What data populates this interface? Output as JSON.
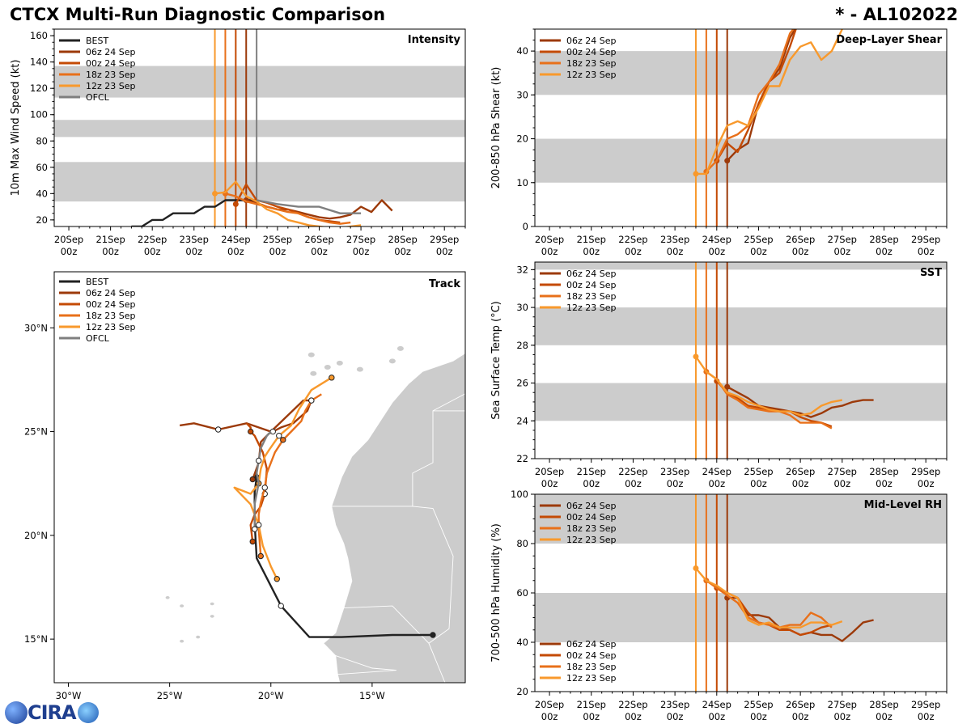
{
  "title_left": "CTCX Multi-Run Diagnostic Comparison",
  "title_right": "* - AL102022",
  "logo_text": "CIRA",
  "colors": {
    "BEST": "#222222",
    "06z 24 Sep": "#9c3a0a",
    "00z 24 Sep": "#c44a04",
    "18z 23 Sep": "#e8701a",
    "12z 23 Sep": "#f8992c",
    "OFCL": "#7f7f7f",
    "band": "#cccccc",
    "land": "#cccccc"
  },
  "time_ticks": [
    "20Sep\n00z",
    "21Sep\n00z",
    "22Sep\n00z",
    "23Sep\n00z",
    "24Sep\n00z",
    "25Sep\n00z",
    "26Sep\n00z",
    "27Sep\n00z",
    "28Sep\n00z",
    "29Sep\n00z"
  ],
  "chart_data": [
    {
      "type": "line",
      "name": "intensity",
      "panel_label": "Intensity",
      "ylabel": "10m Max Wind Speed (kt)",
      "ylim": [
        15,
        165
      ],
      "yticks": [
        20,
        40,
        60,
        80,
        100,
        120,
        140,
        160
      ],
      "xlim": [
        -0.35,
        9.5
      ],
      "bands": [
        [
          34,
          64
        ],
        [
          83,
          96
        ],
        [
          113,
          137
        ]
      ],
      "init_lines": [
        {
          "x": 3.5,
          "run": "12z 23 Sep"
        },
        {
          "x": 3.75,
          "run": "18z 23 Sep"
        },
        {
          "x": 4.0,
          "run": "00z 24 Sep"
        },
        {
          "x": 4.25,
          "run": "06z 24 Sep"
        },
        {
          "x": 4.5,
          "run": "OFCL"
        }
      ],
      "legend": [
        "BEST",
        "06z 24 Sep",
        "00z 24 Sep",
        "18z 23 Sep",
        "12z 23 Sep",
        "OFCL"
      ],
      "series": [
        {
          "name": "BEST",
          "x": [
            1.5,
            1.75,
            2.0,
            2.25,
            2.5,
            2.75,
            3.0,
            3.25,
            3.5,
            3.75,
            4.0,
            4.25,
            4.5
          ],
          "y": [
            15,
            15,
            20,
            20,
            25,
            25,
            25,
            30,
            30,
            35,
            35,
            35,
            35
          ]
        },
        {
          "name": "06z 24 Sep",
          "x": [
            4.25,
            4.5,
            4.75,
            5.0,
            5.25,
            5.5,
            5.75,
            6.0,
            6.25,
            6.5,
            6.75,
            7.0,
            7.25,
            7.5,
            7.75
          ],
          "y": [
            35,
            33,
            30,
            28,
            28,
            26,
            24,
            22,
            21,
            22,
            24,
            30,
            26,
            35,
            27
          ]
        },
        {
          "name": "00z 24 Sep",
          "x": [
            4.0,
            4.25,
            4.5,
            4.75,
            5.0,
            5.25,
            5.5,
            5.75,
            6.0,
            6.25,
            6.5
          ],
          "y": [
            32,
            47,
            35,
            33,
            30,
            28,
            25,
            22,
            20,
            19,
            18
          ]
        },
        {
          "name": "18z 23 Sep",
          "x": [
            3.75,
            4.0,
            4.25,
            4.5,
            4.75,
            5.0,
            5.25,
            5.5,
            5.75,
            6.0,
            6.25,
            6.5,
            6.75
          ],
          "y": [
            40,
            38,
            34,
            32,
            30,
            28,
            26,
            25,
            22,
            20,
            18,
            17,
            18
          ]
        },
        {
          "name": "12z 23 Sep",
          "x": [
            3.5,
            3.75,
            4.0,
            4.25,
            4.5,
            4.75,
            5.0,
            5.25,
            5.5,
            5.75,
            6.0,
            6.25,
            6.5,
            7.0
          ],
          "y": [
            40,
            41,
            49,
            38,
            34,
            28,
            25,
            20,
            18,
            16,
            15,
            14,
            14,
            16
          ]
        },
        {
          "name": "OFCL",
          "x": [
            4.5,
            5.0,
            5.5,
            6.0,
            6.5,
            7.0
          ],
          "y": [
            35,
            32,
            30,
            30,
            25,
            25
          ]
        }
      ]
    },
    {
      "type": "line",
      "name": "shear",
      "panel_label": "Deep-Layer Shear",
      "ylabel": "200-850 hPa Shear (kt)",
      "ylim": [
        0,
        45
      ],
      "yticks": [
        0,
        10,
        20,
        30,
        40
      ],
      "xlim": [
        -0.35,
        9.5
      ],
      "bands": [
        [
          10,
          20
        ],
        [
          30,
          40
        ]
      ],
      "init_lines": [
        {
          "x": 3.5,
          "run": "12z 23 Sep"
        },
        {
          "x": 3.75,
          "run": "18z 23 Sep"
        },
        {
          "x": 4.0,
          "run": "00z 24 Sep"
        },
        {
          "x": 4.25,
          "run": "06z 24 Sep"
        }
      ],
      "legend": [
        "06z 24 Sep",
        "00z 24 Sep",
        "18z 23 Sep",
        "12z 23 Sep"
      ],
      "series": [
        {
          "name": "06z 24 Sep",
          "x": [
            4.25,
            4.5,
            4.75,
            5.0,
            5.25,
            5.5,
            5.75,
            6.0
          ],
          "y": [
            15,
            17.5,
            19,
            28,
            33,
            36,
            43,
            47
          ]
        },
        {
          "name": "00z 24 Sep",
          "x": [
            4.0,
            4.25,
            4.5,
            4.75,
            5.0,
            5.25,
            5.5,
            5.75,
            6.0
          ],
          "y": [
            15,
            19,
            17,
            22,
            28,
            33,
            35,
            41,
            48
          ]
        },
        {
          "name": "18z 23 Sep",
          "x": [
            3.75,
            4.0,
            4.25,
            4.5,
            4.75,
            5.0,
            5.25,
            5.5,
            5.75,
            6.0
          ],
          "y": [
            12.5,
            15,
            20,
            21,
            23,
            30,
            33,
            37,
            44,
            47
          ]
        },
        {
          "name": "12z 23 Sep",
          "x": [
            3.5,
            3.75,
            4.0,
            4.25,
            4.5,
            4.75,
            5.0,
            5.25,
            5.5,
            5.75,
            6.0,
            6.25,
            6.5,
            6.75,
            7.0
          ],
          "y": [
            12,
            12,
            18,
            23,
            24,
            23,
            27,
            32,
            32,
            38,
            41,
            42,
            38,
            40,
            45
          ]
        }
      ]
    },
    {
      "type": "line",
      "name": "sst",
      "panel_label": "SST",
      "ylabel": "Sea Surface Temp (°C)",
      "ylim": [
        22,
        32.4
      ],
      "yticks": [
        22,
        24,
        26,
        28,
        30,
        32
      ],
      "xlim": [
        -0.35,
        9.5
      ],
      "bands": [
        [
          24,
          26
        ],
        [
          28,
          30
        ],
        [
          32,
          32.4
        ]
      ],
      "init_lines": [
        {
          "x": 3.5,
          "run": "12z 23 Sep"
        },
        {
          "x": 3.75,
          "run": "18z 23 Sep"
        },
        {
          "x": 4.0,
          "run": "00z 24 Sep"
        },
        {
          "x": 4.25,
          "run": "06z 24 Sep"
        }
      ],
      "legend": [
        "06z 24 Sep",
        "00z 24 Sep",
        "18z 23 Sep",
        "12z 23 Sep"
      ],
      "series": [
        {
          "name": "06z 24 Sep",
          "x": [
            4.25,
            4.5,
            4.75,
            5.0,
            5.25,
            5.5,
            5.75,
            6.0,
            6.25,
            6.5,
            6.75,
            7.0,
            7.25,
            7.5,
            7.75
          ],
          "y": [
            25.8,
            25.5,
            25.2,
            24.8,
            24.7,
            24.6,
            24.5,
            24.4,
            24.2,
            24.4,
            24.7,
            24.8,
            25.0,
            25.1,
            25.1
          ]
        },
        {
          "name": "00z 24 Sep",
          "x": [
            4.0,
            4.25,
            4.5,
            4.75,
            5.0,
            5.25,
            5.5,
            5.75,
            6.0,
            6.25,
            6.5,
            6.75
          ],
          "y": [
            26.1,
            25.5,
            25.2,
            24.8,
            24.7,
            24.6,
            24.5,
            24.5,
            24.2,
            24.0,
            23.9,
            23.7
          ]
        },
        {
          "name": "18z 23 Sep",
          "x": [
            3.75,
            4.0,
            4.25,
            4.5,
            4.75,
            5.0,
            5.25,
            5.5,
            5.75,
            6.0,
            6.25,
            6.5,
            6.75
          ],
          "y": [
            26.6,
            26.2,
            25.4,
            25.1,
            24.7,
            24.6,
            24.5,
            24.5,
            24.3,
            23.9,
            23.9,
            23.9,
            23.6
          ]
        },
        {
          "name": "12z 23 Sep",
          "x": [
            3.5,
            3.75,
            4.0,
            4.25,
            4.5,
            4.75,
            5.0,
            5.25,
            5.5,
            5.75,
            6.0,
            6.25,
            6.5,
            6.75,
            7.0
          ],
          "y": [
            27.4,
            26.6,
            26.2,
            25.5,
            25.3,
            25.0,
            24.8,
            24.6,
            24.5,
            24.5,
            24.3,
            24.4,
            24.8,
            25.0,
            25.1
          ]
        }
      ]
    },
    {
      "type": "line",
      "name": "rh",
      "panel_label": "Mid-Level RH",
      "ylabel": "700-500 hPa Humidity (%)",
      "ylim": [
        20,
        100
      ],
      "yticks": [
        20,
        40,
        60,
        80,
        100
      ],
      "xlim": [
        -0.35,
        9.5
      ],
      "bands": [
        [
          40,
          60
        ],
        [
          80,
          100
        ]
      ],
      "init_lines": [
        {
          "x": 3.5,
          "run": "12z 23 Sep"
        },
        {
          "x": 3.75,
          "run": "18z 23 Sep"
        },
        {
          "x": 4.0,
          "run": "00z 24 Sep"
        },
        {
          "x": 4.25,
          "run": "06z 24 Sep"
        }
      ],
      "legend": [
        "06z 24 Sep",
        "00z 24 Sep",
        "18z 23 Sep",
        "12z 23 Sep"
      ],
      "series": [
        {
          "name": "06z 24 Sep",
          "x": [
            4.25,
            4.5,
            4.75,
            5.0,
            5.25,
            5.5,
            5.75,
            6.0,
            6.25,
            6.5,
            6.75,
            7.0,
            7.25,
            7.5,
            7.75
          ],
          "y": [
            58,
            58,
            51,
            51,
            50,
            46,
            45,
            43,
            44,
            43,
            43,
            40.5,
            44,
            48,
            49
          ]
        },
        {
          "name": "00z 24 Sep",
          "x": [
            4.0,
            4.25,
            4.5,
            4.75,
            5.0,
            5.25,
            5.5,
            5.75,
            6.0,
            6.25,
            6.5,
            6.75
          ],
          "y": [
            62,
            60,
            58,
            52,
            48,
            47,
            45,
            45,
            43,
            44,
            46,
            47
          ]
        },
        {
          "name": "18z 23 Sep",
          "x": [
            3.75,
            4.0,
            4.25,
            4.5,
            4.75,
            5.0,
            5.25,
            5.5,
            5.75,
            6.0,
            6.25,
            6.5,
            6.75
          ],
          "y": [
            65,
            62,
            59,
            56,
            50,
            48,
            47,
            46,
            47,
            47,
            52,
            50,
            46
          ]
        },
        {
          "name": "12z 23 Sep",
          "x": [
            3.5,
            3.75,
            4.0,
            4.25,
            4.5,
            4.75,
            5.0,
            5.25,
            5.5,
            5.75,
            6.0,
            6.25,
            6.5,
            6.75,
            7.0
          ],
          "y": [
            70,
            65,
            63,
            60,
            58,
            49,
            47,
            48,
            46,
            46,
            46,
            48,
            48,
            47,
            48.5
          ]
        }
      ]
    },
    {
      "type": "scatter",
      "name": "track",
      "panel_label": "Track",
      "lon_range": [
        -30.7,
        -10.4
      ],
      "lat_range": [
        12.9,
        32.7
      ],
      "xticks": [
        {
          "v": -30,
          "label": "30°W"
        },
        {
          "v": -25,
          "label": "25°W"
        },
        {
          "v": -20,
          "label": "20°W"
        },
        {
          "v": -15,
          "label": "15°W"
        }
      ],
      "yticks": [
        {
          "v": 15,
          "label": "15°N"
        },
        {
          "v": 20,
          "label": "20°N"
        },
        {
          "v": 25,
          "label": "25°N"
        },
        {
          "v": 30,
          "label": "30°N"
        }
      ],
      "legend": [
        "BEST",
        "06z 24 Sep",
        "00z 24 Sep",
        "18z 23 Sep",
        "12z 23 Sep",
        "OFCL"
      ],
      "series": [
        {
          "name": "BEST",
          "lon": [
            -12.0,
            -14.0,
            -16.5,
            -18.1,
            -19.5,
            -20.7,
            -20.8,
            -20.8,
            -20.7,
            -20.7
          ],
          "lat": [
            15.2,
            15.2,
            15.1,
            15.1,
            16.6,
            18.9,
            20.6,
            22.1,
            22.8,
            23.0
          ]
        },
        {
          "name": "06z 24 Sep",
          "lon": [
            -20.9,
            -20.6,
            -20.5,
            -20.1,
            -19.9,
            -19.5,
            -18.9,
            -18.2,
            -18.0,
            -18.4,
            -20.0,
            -21.2,
            -22.6,
            -23.8,
            -24.5
          ],
          "lat": [
            22.7,
            23.5,
            24.5,
            24.9,
            25.0,
            25.2,
            25.4,
            26.0,
            26.5,
            26.5,
            25.0,
            25.4,
            25.1,
            25.4,
            25.3
          ]
        },
        {
          "name": "00z 24 Sep",
          "lon": [
            -20.9,
            -21.0,
            -20.8,
            -20.5,
            -20.3,
            -20.2,
            -20.4,
            -20.8,
            -21.0,
            -21.0,
            -21.2,
            -21.2
          ],
          "lat": [
            19.7,
            20.5,
            21.0,
            21.4,
            22.0,
            23.2,
            24.0,
            24.8,
            25.0,
            25.2,
            25.4,
            25.4
          ]
        },
        {
          "name": "18z 23 Sep",
          "lon": [
            -20.5,
            -20.6,
            -20.6,
            -20.5,
            -20.3,
            -20.2,
            -20.0,
            -19.8,
            -19.4,
            -19.0,
            -18.5,
            -18.3,
            -18.0,
            -17.5
          ],
          "lat": [
            19.0,
            20.3,
            21.0,
            21.6,
            22.3,
            23.0,
            23.5,
            24.0,
            24.6,
            25.0,
            25.5,
            26.0,
            26.5,
            26.8
          ]
        },
        {
          "name": "12z 23 Sep",
          "lon": [
            -19.7,
            -20.0,
            -20.2,
            -20.4,
            -20.6,
            -21.0,
            -21.8,
            -21.0,
            -20.6,
            -20.5,
            -20.3,
            -20.1,
            -19.6,
            -19.0,
            -18.6,
            -18.0,
            -17.0
          ],
          "lat": [
            17.9,
            18.5,
            19.0,
            19.5,
            20.5,
            21.5,
            22.3,
            22.0,
            22.5,
            23.2,
            23.8,
            24.1,
            24.8,
            25.3,
            26.1,
            27.0,
            27.6
          ]
        },
        {
          "name": "OFCL",
          "lon": [
            -20.8,
            -20.8,
            -20.6,
            -20.7,
            -20.6,
            -20.5,
            -20.2,
            -20.0
          ],
          "lat": [
            20.3,
            21.5,
            22.5,
            23.0,
            23.6,
            24.2,
            24.8,
            25.0
          ]
        }
      ]
    }
  ]
}
